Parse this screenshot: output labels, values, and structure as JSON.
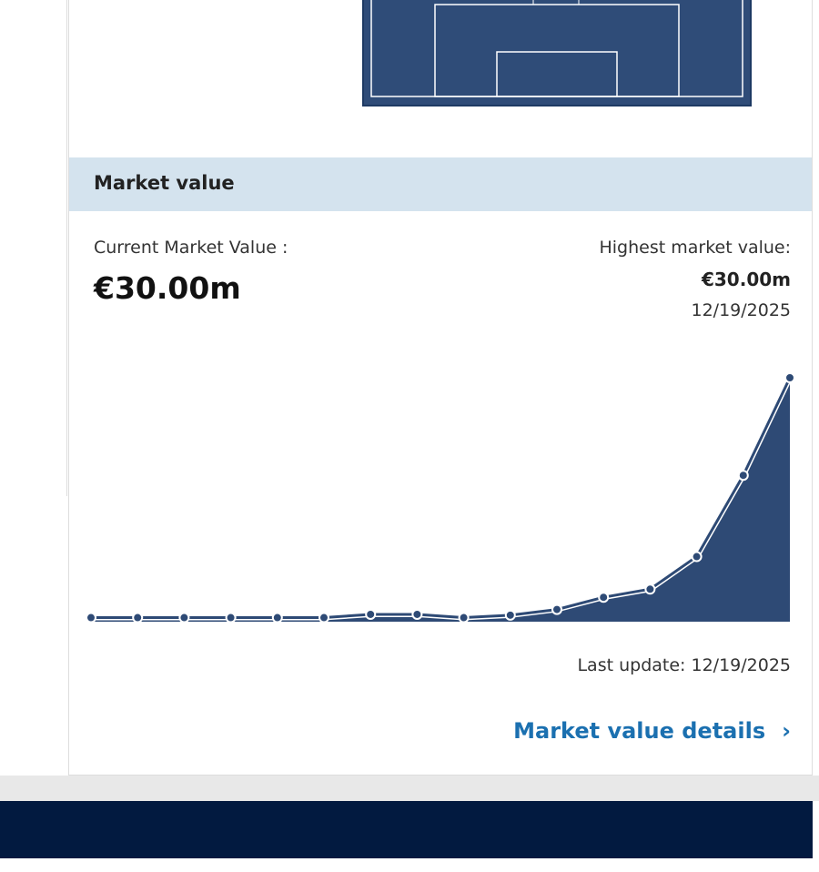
{
  "section_title": "Market value",
  "current": {
    "label": "Current Market Value :",
    "value": "€30.00m"
  },
  "highest": {
    "label": "Highest market value:",
    "value": "€30.00m",
    "date": "12/19/2025"
  },
  "chart_data": {
    "type": "area",
    "color": "#2e4a75",
    "values": [
      0.5,
      0.5,
      0.5,
      0.5,
      0.5,
      0.5,
      0.9,
      0.9,
      0.5,
      0.8,
      1.5,
      3,
      4,
      8,
      18,
      30
    ]
  },
  "last_update": {
    "label": "Last update:",
    "date": "12/19/2025"
  },
  "link": "Market value details"
}
